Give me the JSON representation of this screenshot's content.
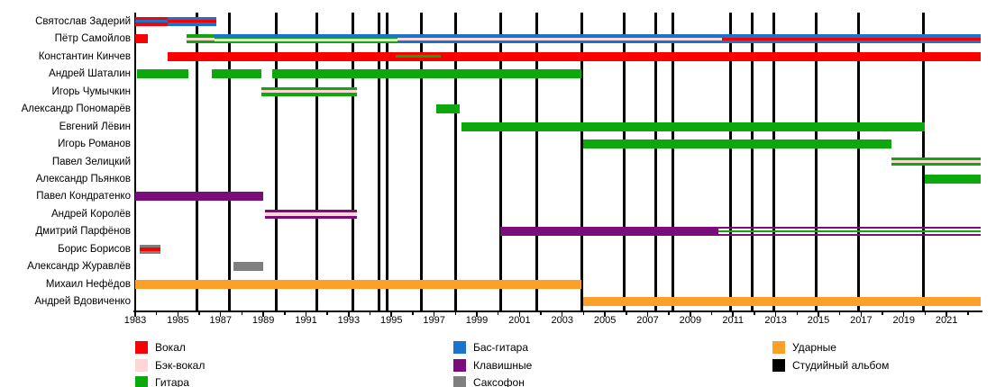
{
  "chart_data": {
    "type": "timeline",
    "title": "",
    "x_axis": {
      "min": 1983,
      "max": 2022.6,
      "label_years": [
        1983,
        1985,
        1987,
        1989,
        1991,
        1993,
        1995,
        1997,
        1999,
        2001,
        2003,
        2005,
        2007,
        2009,
        2011,
        2013,
        2015,
        2017,
        2019,
        2021
      ]
    },
    "colors": {
      "vocals": "#fa0000",
      "backing": "#ffd6d6",
      "guitar": "#0da80d",
      "bass": "#1874cd",
      "keyboards": "#7b0c7b",
      "sax": "#7f7f7f",
      "drums": "#fba029",
      "album": "#000000",
      "none": "transparent"
    },
    "legend": {
      "columns": [
        [
          {
            "label": "Вокал",
            "color": "vocals"
          },
          {
            "label": "Бэк-вокал",
            "color": "backing"
          },
          {
            "label": "Гитара",
            "color": "guitar"
          }
        ],
        [
          {
            "label": "Бас-гитара",
            "color": "bass"
          },
          {
            "label": "Клавишные",
            "color": "keyboards"
          },
          {
            "label": "Саксофон",
            "color": "sax"
          }
        ],
        [
          {
            "label": "Ударные",
            "color": "drums"
          },
          {
            "label": "Студийный альбом",
            "color": "album"
          }
        ]
      ]
    },
    "album_lines": {
      "label": "Студийный альбом",
      "years": [
        1985.9,
        1987.4,
        1989.6,
        1991.5,
        1993.2,
        1994.4,
        1994.8,
        1996.4,
        1998.0,
        2000.1,
        2001.8,
        2003.9,
        2005.9,
        2007.4,
        2008.2,
        2010.9,
        2011.9,
        2012.9,
        2014.9,
        2016.9,
        2019.9
      ]
    },
    "members": [
      {
        "name": "Святослав Задерий",
        "segments": [
          {
            "start": 1983.0,
            "end": 1984.5,
            "stripes": [
              "vocals",
              "bass",
              "vocals"
            ]
          },
          {
            "start": 1984.5,
            "end": 1986.8,
            "stripes": [
              "bass",
              "vocals",
              "bass"
            ]
          }
        ]
      },
      {
        "name": "Пётр Самойлов",
        "segments": [
          {
            "start": 1983.0,
            "end": 1983.6,
            "stripes": [
              "vocals"
            ]
          },
          {
            "start": 1985.4,
            "end": 1986.7,
            "stripes": [
              "guitar",
              "backing",
              "guitar"
            ]
          },
          {
            "start": 1986.7,
            "end": 1995.3,
            "stripes": [
              "bass",
              "guitar",
              "backing",
              "guitar"
            ]
          },
          {
            "start": 1995.3,
            "end": 2010.5,
            "stripes": [
              "bass",
              "backing",
              "bass"
            ]
          },
          {
            "start": 2010.5,
            "end": 2022.6,
            "stripes": [
              "bass",
              "vocals",
              "bass"
            ]
          }
        ]
      },
      {
        "name": "Константин Кинчев",
        "segments": [
          {
            "start": 1984.5,
            "end": 1995.2,
            "stripes": [
              "vocals"
            ]
          },
          {
            "start": 1995.2,
            "end": 1997.3,
            "stripes": [
              "vocals",
              "guitar",
              "vocals"
            ]
          },
          {
            "start": 1997.3,
            "end": 2022.6,
            "stripes": [
              "vocals"
            ]
          }
        ]
      },
      {
        "name": "Андрей Шаталин",
        "segments": [
          {
            "start": 1983.1,
            "end": 1985.5,
            "stripes": [
              "guitar"
            ]
          },
          {
            "start": 1986.6,
            "end": 1988.9,
            "stripes": [
              "guitar"
            ]
          },
          {
            "start": 1989.4,
            "end": 2003.9,
            "stripes": [
              "guitar"
            ]
          }
        ]
      },
      {
        "name": "Игорь Чумычкин",
        "segments": [
          {
            "start": 1988.9,
            "end": 1993.4,
            "stripes": [
              "guitar",
              "backing",
              "guitar"
            ]
          }
        ]
      },
      {
        "name": "Александр Пономарёв",
        "segments": [
          {
            "start": 1997.1,
            "end": 1998.2,
            "stripes": [
              "guitar"
            ]
          }
        ]
      },
      {
        "name": "Евгений Лёвин",
        "segments": [
          {
            "start": 1998.3,
            "end": 2020.0,
            "stripes": [
              "guitar"
            ]
          }
        ]
      },
      {
        "name": "Игорь Романов",
        "segments": [
          {
            "start": 2004.0,
            "end": 2018.4,
            "stripes": [
              "guitar"
            ]
          }
        ]
      },
      {
        "name": "Павел Зелицкий",
        "segments": [
          {
            "start": 2018.4,
            "end": 2022.6,
            "stripes": [
              "guitar",
              "backing",
              "guitar"
            ]
          }
        ]
      },
      {
        "name": "Александр Пьянков",
        "segments": [
          {
            "start": 2020.0,
            "end": 2022.6,
            "stripes": [
              "guitar"
            ]
          }
        ]
      },
      {
        "name": "Павел Кондратенко",
        "segments": [
          {
            "start": 1983.0,
            "end": 1989.0,
            "stripes": [
              "keyboards"
            ]
          }
        ]
      },
      {
        "name": "Андрей Королёв",
        "segments": [
          {
            "start": 1989.1,
            "end": 1993.4,
            "stripes": [
              "keyboards",
              "backing",
              "keyboards"
            ]
          }
        ]
      },
      {
        "name": "Дмитрий Парфёнов",
        "segments": [
          {
            "start": 2000.1,
            "end": 2010.3,
            "stripes": [
              "keyboards"
            ]
          },
          {
            "start": 2010.3,
            "end": 2022.6,
            "stripes": [
              "keyboards",
              "none",
              "guitar",
              "none",
              "keyboards"
            ]
          }
        ]
      },
      {
        "name": "Борис Борисов",
        "segments": [
          {
            "start": 1983.2,
            "end": 1984.2,
            "stripes": [
              "sax",
              "vocals",
              "sax"
            ]
          }
        ]
      },
      {
        "name": "Александр Журавлёв",
        "segments": [
          {
            "start": 1987.6,
            "end": 1989.0,
            "stripes": [
              "sax"
            ]
          }
        ]
      },
      {
        "name": "Михаил Нефёдов",
        "segments": [
          {
            "start": 1983.0,
            "end": 2003.9,
            "stripes": [
              "drums"
            ]
          }
        ]
      },
      {
        "name": "Андрей Вдовиченко",
        "segments": [
          {
            "start": 2004.0,
            "end": 2022.6,
            "stripes": [
              "drums"
            ]
          }
        ]
      }
    ]
  }
}
